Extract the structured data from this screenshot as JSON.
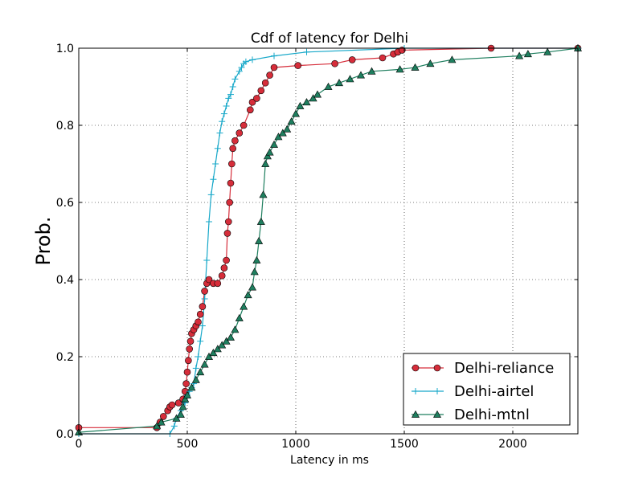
{
  "chart_data": {
    "type": "line",
    "title": "Cdf of latency for Delhi",
    "xlabel": "Latency in ms",
    "ylabel": "Prob.",
    "xlim": [
      0,
      2300
    ],
    "ylim": [
      0.0,
      1.0
    ],
    "xticks": [
      0,
      500,
      1000,
      1500,
      2000
    ],
    "xtick_labels": [
      "0",
      "500",
      "1000",
      "1500",
      "2000"
    ],
    "yticks": [
      0.0,
      0.2,
      0.4,
      0.6,
      0.8,
      1.0
    ],
    "ytick_labels": [
      "0.0",
      "0.2",
      "0.4",
      "0.6",
      "0.8",
      "1.0"
    ],
    "grid": true,
    "legend_position": "lower-right",
    "series": [
      {
        "name": "Delhi-reliance",
        "color": "#d62d3a",
        "marker": "circle",
        "x": [
          0,
          360,
          375,
          390,
          410,
          420,
          430,
          460,
          480,
          490,
          495,
          500,
          505,
          510,
          515,
          520,
          530,
          540,
          550,
          560,
          570,
          580,
          590,
          600,
          620,
          640,
          660,
          670,
          680,
          685,
          690,
          695,
          700,
          705,
          710,
          720,
          740,
          760,
          790,
          800,
          820,
          840,
          860,
          880,
          900,
          1010,
          1180,
          1260,
          1400,
          1450,
          1470,
          1490,
          1900,
          2300
        ],
        "y": [
          0.016,
          0.016,
          0.03,
          0.045,
          0.06,
          0.07,
          0.075,
          0.08,
          0.09,
          0.11,
          0.13,
          0.16,
          0.19,
          0.22,
          0.24,
          0.26,
          0.27,
          0.28,
          0.29,
          0.31,
          0.33,
          0.37,
          0.39,
          0.4,
          0.39,
          0.39,
          0.41,
          0.43,
          0.45,
          0.52,
          0.55,
          0.6,
          0.65,
          0.7,
          0.74,
          0.76,
          0.78,
          0.8,
          0.84,
          0.86,
          0.87,
          0.89,
          0.91,
          0.93,
          0.95,
          0.955,
          0.96,
          0.97,
          0.975,
          0.985,
          0.99,
          0.995,
          1.0,
          1.0
        ]
      },
      {
        "name": "Delhi-airtel",
        "color": "#17a8c9",
        "marker": "plus",
        "x": [
          0,
          420,
          440,
          450,
          470,
          490,
          500,
          510,
          520,
          530,
          540,
          550,
          560,
          570,
          580,
          590,
          600,
          610,
          620,
          630,
          640,
          650,
          660,
          670,
          680,
          690,
          700,
          710,
          720,
          740,
          750,
          760,
          770,
          800,
          900,
          1050,
          1500,
          2300
        ],
        "y": [
          0.0,
          0.0,
          0.02,
          0.04,
          0.06,
          0.08,
          0.1,
          0.11,
          0.12,
          0.13,
          0.17,
          0.2,
          0.24,
          0.28,
          0.35,
          0.45,
          0.55,
          0.62,
          0.66,
          0.7,
          0.74,
          0.78,
          0.81,
          0.83,
          0.85,
          0.87,
          0.88,
          0.9,
          0.92,
          0.94,
          0.95,
          0.96,
          0.965,
          0.97,
          0.98,
          0.99,
          1.0,
          1.0
        ]
      },
      {
        "name": "Delhi-mtnl",
        "color": "#1f7f5f",
        "marker": "triangle",
        "x": [
          0,
          360,
          380,
          450,
          470,
          480,
          490,
          500,
          520,
          540,
          560,
          580,
          600,
          620,
          640,
          660,
          680,
          700,
          720,
          740,
          760,
          780,
          800,
          810,
          820,
          830,
          840,
          850,
          860,
          870,
          880,
          900,
          920,
          940,
          960,
          980,
          1000,
          1020,
          1050,
          1080,
          1100,
          1150,
          1200,
          1250,
          1300,
          1350,
          1480,
          1550,
          1620,
          1720,
          2030,
          2070,
          2160,
          2300
        ],
        "y": [
          0.004,
          0.02,
          0.03,
          0.04,
          0.05,
          0.07,
          0.09,
          0.1,
          0.12,
          0.14,
          0.16,
          0.18,
          0.2,
          0.21,
          0.22,
          0.23,
          0.24,
          0.25,
          0.27,
          0.3,
          0.33,
          0.36,
          0.38,
          0.42,
          0.45,
          0.5,
          0.55,
          0.62,
          0.7,
          0.72,
          0.73,
          0.75,
          0.77,
          0.78,
          0.79,
          0.81,
          0.83,
          0.85,
          0.86,
          0.87,
          0.88,
          0.9,
          0.91,
          0.92,
          0.93,
          0.94,
          0.945,
          0.95,
          0.96,
          0.97,
          0.98,
          0.985,
          0.99,
          1.0
        ]
      }
    ]
  }
}
